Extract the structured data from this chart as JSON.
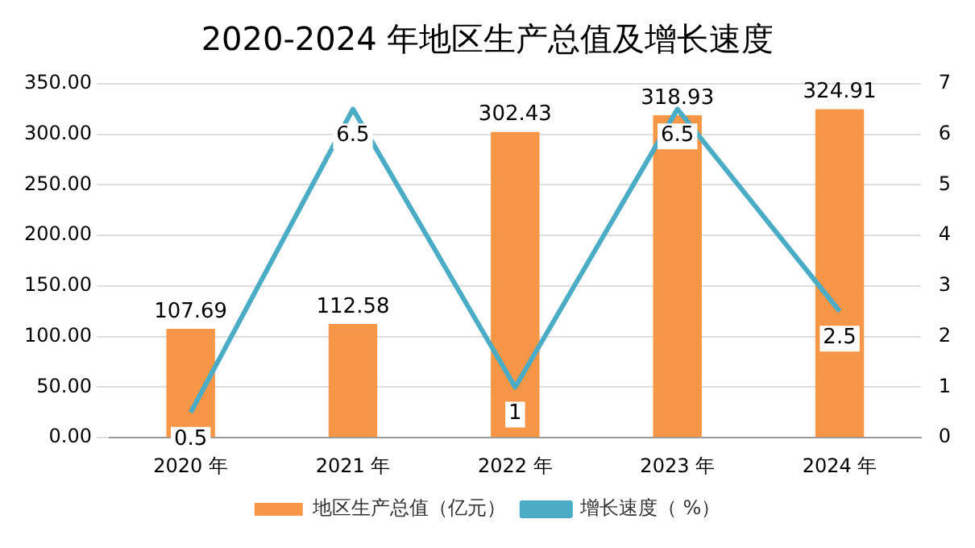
{
  "chart_data": {
    "type": "bar",
    "title": "2020-2024 年地区生产总值及增长速度",
    "categories": [
      "2020 年",
      "2021 年",
      "2022 年",
      "2023 年",
      "2024 年"
    ],
    "series": [
      {
        "name": "地区生产总值（亿元）",
        "color": "#f79646",
        "values": [
          107.69,
          112.58,
          302.43,
          318.93,
          324.91
        ]
      },
      {
        "name": "增长速度（ %）",
        "type": "line",
        "axis": "y2",
        "color": "#4bacc6",
        "marker": "none",
        "values": [
          0.5,
          6.5,
          1,
          6.5,
          2.5
        ]
      }
    ],
    "ylim": [
      0,
      350
    ],
    "yticks": [
      {
        "value": 0,
        "label": "0.00"
      },
      {
        "value": 50,
        "label": "50.00"
      },
      {
        "value": 100,
        "label": "100.00"
      },
      {
        "value": 150,
        "label": "150.00"
      },
      {
        "value": 200,
        "label": "200.00"
      },
      {
        "value": 250,
        "label": "250.00"
      },
      {
        "value": 300,
        "label": "300.00"
      },
      {
        "value": 350,
        "label": "350.00"
      }
    ],
    "y2lim": [
      0,
      7
    ],
    "y2ticks": [
      0,
      1,
      2,
      3,
      4,
      5,
      6,
      7
    ],
    "grid": "y",
    "legend": "bottom",
    "data_labels": true
  }
}
